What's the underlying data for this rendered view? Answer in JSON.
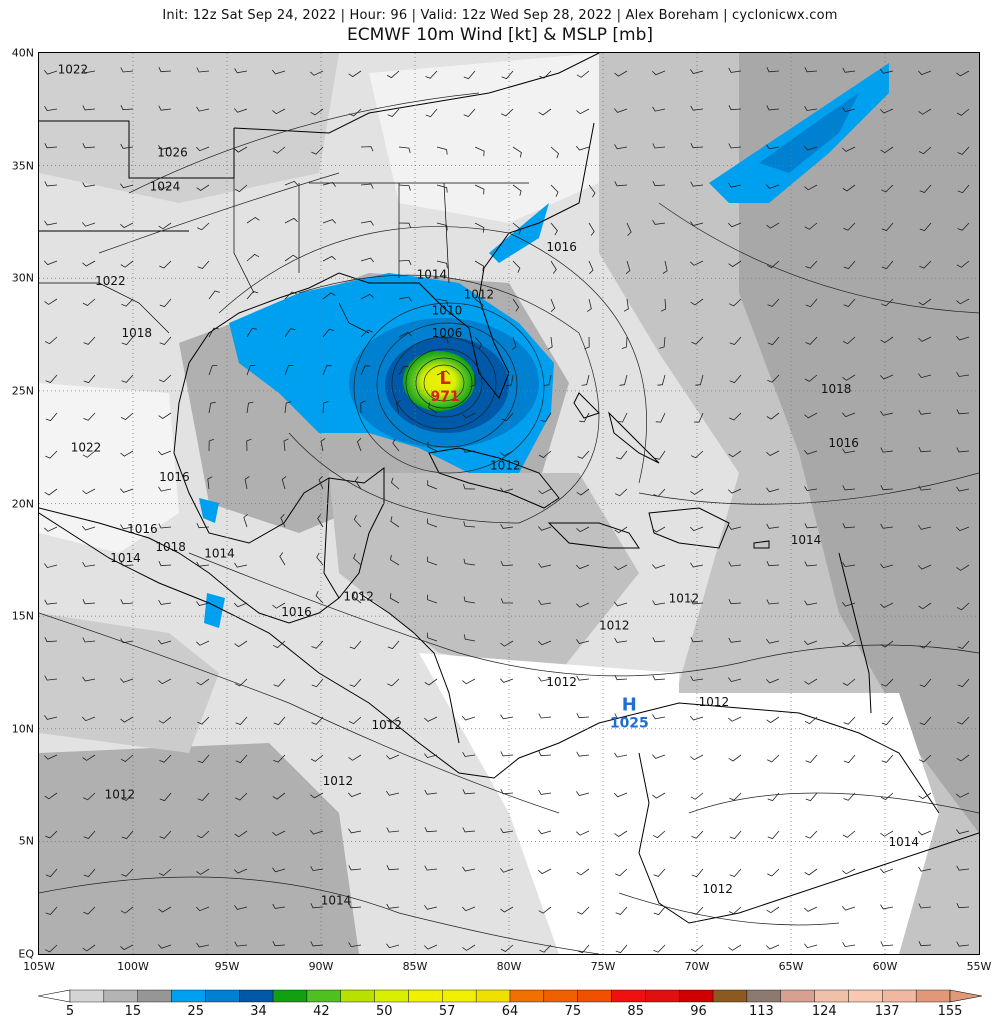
{
  "header": {
    "subtitle": "Init: 12z Sat Sep 24, 2022 | Hour: 96 | Valid: 12z Wed Sep 28, 2022 | Alex Boreham | cyclonicwx.com",
    "title": "ECMWF 10m Wind [kt] & MSLP [mb]"
  },
  "map": {
    "lat_labels": [
      "40N",
      "35N",
      "30N",
      "25N",
      "20N",
      "15N",
      "10N",
      "5N",
      "EQ"
    ],
    "lon_labels": [
      "105W",
      "100W",
      "95W",
      "90W",
      "85W",
      "80W",
      "75W",
      "70W",
      "65W",
      "60W",
      "55W"
    ],
    "low": {
      "symbol": "L",
      "pressure": "971",
      "lat": 25.3,
      "lon": -83.4,
      "color": "#d42020"
    },
    "high": {
      "symbol": "H",
      "pressure": "1025",
      "lat": 10.8,
      "lon": -73.6,
      "color": "#1f6fd0"
    },
    "isobar_labels": [
      {
        "text": "1022",
        "lat": 39.1,
        "lon": -103.2
      },
      {
        "text": "1026",
        "lat": 35.4,
        "lon": -97.9
      },
      {
        "text": "1024",
        "lat": 33.9,
        "lon": -98.3
      },
      {
        "text": "1022",
        "lat": 29.7,
        "lon": -101.2
      },
      {
        "text": "1018",
        "lat": 27.4,
        "lon": -99.8
      },
      {
        "text": "1014",
        "lat": 30.0,
        "lon": -84.1
      },
      {
        "text": "1012",
        "lat": 29.1,
        "lon": -81.6
      },
      {
        "text": "1010",
        "lat": 28.4,
        "lon": -83.3
      },
      {
        "text": "1006",
        "lat": 27.4,
        "lon": -83.3
      },
      {
        "text": "1016",
        "lat": 31.2,
        "lon": -77.2
      },
      {
        "text": "1018",
        "lat": 24.9,
        "lon": -62.6
      },
      {
        "text": "1016",
        "lat": 22.5,
        "lon": -62.2
      },
      {
        "text": "1012",
        "lat": 21.5,
        "lon": -80.2
      },
      {
        "text": "1022",
        "lat": 22.3,
        "lon": -102.5
      },
      {
        "text": "1016",
        "lat": 21.0,
        "lon": -97.8
      },
      {
        "text": "1016",
        "lat": 18.7,
        "lon": -99.5
      },
      {
        "text": "1018",
        "lat": 17.9,
        "lon": -98.0
      },
      {
        "text": "1014",
        "lat": 17.4,
        "lon": -100.4
      },
      {
        "text": "1014",
        "lat": 17.6,
        "lon": -95.4
      },
      {
        "text": "1012",
        "lat": 15.7,
        "lon": -88.0
      },
      {
        "text": "1016",
        "lat": 15.0,
        "lon": -91.3
      },
      {
        "text": "1014",
        "lat": 18.2,
        "lon": -64.2
      },
      {
        "text": "1012",
        "lat": 15.6,
        "lon": -70.7
      },
      {
        "text": "1012",
        "lat": 14.4,
        "lon": -74.4
      },
      {
        "text": "1012",
        "lat": 11.9,
        "lon": -77.2
      },
      {
        "text": "1012",
        "lat": 11.0,
        "lon": -69.1
      },
      {
        "text": "1012",
        "lat": 10.0,
        "lon": -86.5
      },
      {
        "text": "1012",
        "lat": 7.5,
        "lon": -89.1
      },
      {
        "text": "1012",
        "lat": 6.9,
        "lon": -100.7
      },
      {
        "text": "1014",
        "lat": 4.8,
        "lon": -59.0
      },
      {
        "text": "1012",
        "lat": 2.7,
        "lon": -68.9
      },
      {
        "text": "1014",
        "lat": 2.2,
        "lon": -89.2
      }
    ]
  },
  "colorbar": {
    "colors": [
      "#d4d4d4",
      "#b4b4b4",
      "#969696",
      "#00a0f0",
      "#0080d0",
      "#0058a8",
      "#10a010",
      "#50c020",
      "#b8e000",
      "#d8f000",
      "#f0f000",
      "#f0f000",
      "#f0e000",
      "#f07000",
      "#f06000",
      "#f05000",
      "#f01010",
      "#e01010",
      "#d00000",
      "#8c5a20",
      "#8c7a70",
      "#d8a090",
      "#f0c0a8",
      "#f8c8b0",
      "#f0b8a0",
      "#e09878"
    ],
    "labels": [
      "5",
      "15",
      "25",
      "34",
      "42",
      "50",
      "57",
      "64",
      "75",
      "85",
      "96",
      "113",
      "124",
      "137",
      "155"
    ]
  }
}
